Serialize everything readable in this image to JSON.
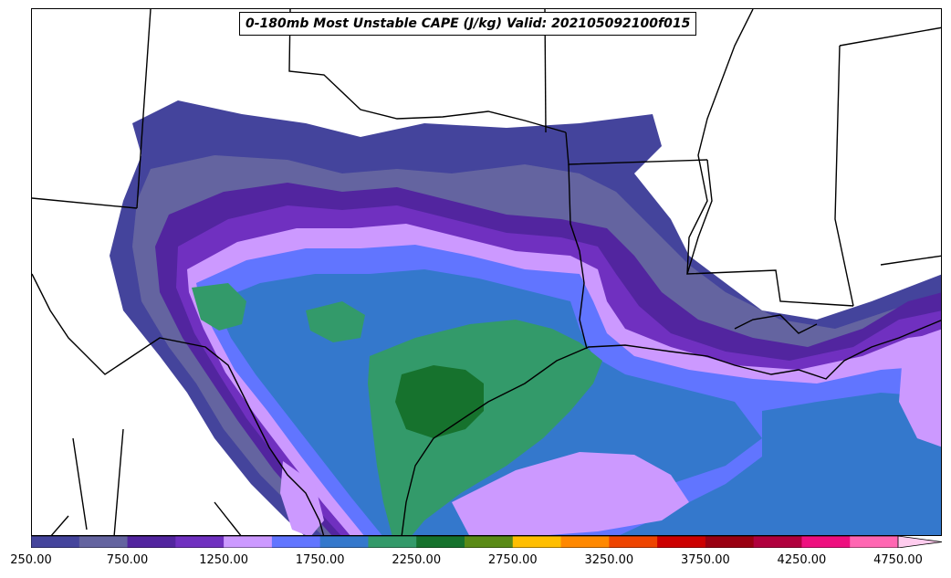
{
  "title": "0-180mb Most Unstable CAPE (J/kg) Valid: 202105092100f015",
  "colorbar": {
    "colors": [
      "#44449c",
      "#6464a0",
      "#52259f",
      "#7030c0",
      "#cc99ff",
      "#6175ff",
      "#3478cc",
      "#339a6a",
      "#16722d",
      "#5a8a16",
      "#ffbe00",
      "#ff8800",
      "#ee4400",
      "#cc0000",
      "#990011",
      "#b0003d",
      "#ee0f7f",
      "#ff66b2"
    ],
    "extend_color": "#ffccee",
    "tick_labels": [
      "250.00",
      "750.00",
      "1250.00",
      "1750.00",
      "2250.00",
      "2750.00",
      "3250.00",
      "3750.00",
      "4250.00",
      "4750.00"
    ]
  },
  "field_colors": {
    "c250": "#44449c",
    "c500": "#6464a0",
    "c750": "#52259f",
    "c1000": "#7030c0",
    "c1250": "#cc99ff",
    "c1500": "#6175ff",
    "c1750": "#3478cc",
    "c2000": "#339a6a",
    "c2250": "#16722d"
  }
}
